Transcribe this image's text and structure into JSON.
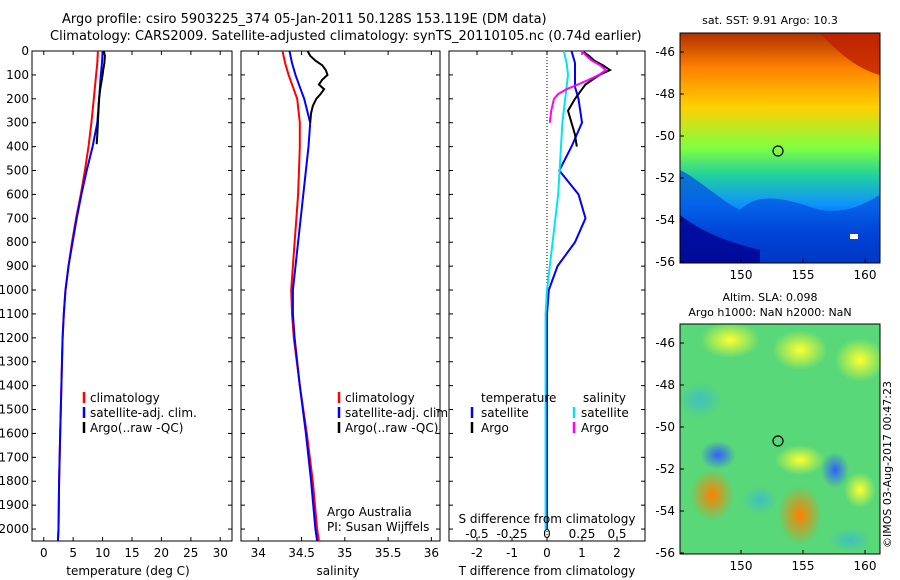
{
  "header": {
    "line1": "Argo profile: csiro 5903225_374 05-Jan-2011 50.128S 153.119E (DM data)",
    "line2": "Climatology: CARS2009. Satellite-adjusted climatology: synTS_20110105.nc (0.74d earlier)"
  },
  "colors": {
    "climatology": "#ff0000",
    "satellite": "#0000ff",
    "argo": "#000000",
    "sat_salinity": "#00e5ee",
    "argo_salinity": "#ff00ff"
  },
  "panels": {
    "temperature": {
      "xlabel": "temperature (deg C)",
      "xticks": [
        "0",
        "5",
        "10",
        "15",
        "20",
        "25",
        "30"
      ],
      "legend": [
        "climatology",
        "satellite-adj. clim.",
        "Argo(..raw -QC)"
      ]
    },
    "salinity": {
      "xlabel": "salinity",
      "xticks": [
        "34",
        "34.5",
        "35",
        "35.5",
        "36"
      ],
      "legend": [
        "climatology",
        "satellite-adj. clim.",
        "Argo(..raw -QC)"
      ],
      "credit1": "Argo Australia",
      "credit2": "PI: Susan Wijffels"
    },
    "difference": {
      "xlabel": "T difference from climatology",
      "s_axis_label": "S difference from climatology",
      "xticks": [
        "-2",
        "-1",
        "0",
        "1",
        "2"
      ],
      "s_ticks": [
        "-0.5",
        "-0.25",
        "0",
        "0.25",
        "0.5"
      ],
      "legend_temp_title": "temperature",
      "legend_sal_title": "salinity",
      "legend_temp": [
        "satellite",
        "Argo"
      ],
      "legend_sal": [
        "satellite",
        "Argo"
      ]
    },
    "sst_map": {
      "title": "sat. SST: 9.91 Argo: 10.3",
      "yticks": [
        "-46",
        "-48",
        "-50",
        "-52",
        "-54",
        "-56"
      ],
      "xticks": [
        "150",
        "155",
        "160"
      ]
    },
    "sla_map": {
      "title1": "Altim. SLA: 0.098",
      "title2": "Argo h1000: NaN h2000: NaN",
      "yticks": [
        "-46",
        "-48",
        "-50",
        "-52",
        "-54",
        "-56"
      ],
      "xticks": [
        "150",
        "155",
        "160"
      ]
    }
  },
  "yaxis_depth_ticks": [
    "0",
    "100",
    "200",
    "300",
    "400",
    "500",
    "600",
    "700",
    "800",
    "900",
    "1000",
    "1100",
    "1200",
    "1300",
    "1400",
    "1500",
    "1600",
    "1700",
    "1800",
    "1900",
    "2000"
  ],
  "watermark": "©IMOS 03-Aug-2017 00:47:23",
  "chart_data": [
    {
      "type": "line",
      "name": "temperature",
      "xlim": [
        -2,
        32
      ],
      "ylim": [
        2050,
        0
      ],
      "series": [
        {
          "name": "climatology",
          "depth": [
            0,
            50,
            100,
            200,
            300,
            400,
            500,
            600,
            700,
            800,
            900,
            1000,
            1100,
            1200,
            1400,
            1600,
            1800,
            2000,
            2050
          ],
          "values": [
            9.2,
            9.1,
            8.9,
            8.5,
            8.1,
            7.6,
            7.0,
            6.3,
            5.5,
            4.8,
            4.2,
            3.7,
            3.4,
            3.2,
            3.0,
            2.8,
            2.6,
            2.5,
            2.4
          ]
        },
        {
          "name": "satellite-adj. clim.",
          "depth": [
            0,
            50,
            100,
            200,
            300,
            400,
            500,
            600,
            700,
            800,
            900,
            1000,
            1100,
            1200,
            1400,
            1600,
            1800,
            2000,
            2050
          ],
          "values": [
            10.0,
            9.9,
            9.7,
            9.4,
            9.1,
            8.3,
            7.3,
            6.4,
            5.6,
            4.9,
            4.2,
            3.7,
            3.4,
            3.2,
            3.0,
            2.8,
            2.6,
            2.5,
            2.4
          ]
        },
        {
          "name": "Argo(..raw -QC)",
          "depth": [
            0,
            20,
            50,
            80,
            100,
            130,
            160,
            200,
            250,
            300,
            350,
            390
          ],
          "values": [
            10.2,
            10.4,
            10.3,
            10.1,
            10.0,
            9.8,
            9.6,
            9.4,
            9.3,
            9.2,
            9.1,
            9.0
          ]
        }
      ]
    },
    {
      "type": "line",
      "name": "salinity",
      "xlim": [
        33.8,
        36.1
      ],
      "ylim": [
        2050,
        0
      ],
      "series": [
        {
          "name": "climatology",
          "depth": [
            0,
            50,
            100,
            150,
            200,
            300,
            400,
            500,
            600,
            700,
            800,
            900,
            1000,
            1100,
            1200,
            1400,
            1600,
            1800,
            2000,
            2050
          ],
          "values": [
            34.28,
            34.31,
            34.35,
            34.4,
            34.45,
            34.48,
            34.48,
            34.47,
            34.46,
            34.44,
            34.42,
            34.4,
            34.38,
            34.39,
            34.41,
            34.48,
            34.56,
            34.63,
            34.68,
            34.7
          ]
        },
        {
          "name": "satellite-adj. clim.",
          "depth": [
            0,
            50,
            100,
            150,
            200,
            300,
            400,
            500,
            600,
            700,
            800,
            900,
            1000,
            1100,
            1200,
            1400,
            1600,
            1800,
            2000,
            2050
          ],
          "values": [
            34.36,
            34.39,
            34.43,
            34.48,
            34.53,
            34.6,
            34.58,
            34.55,
            34.52,
            34.49,
            34.46,
            34.43,
            34.4,
            34.4,
            34.42,
            34.48,
            34.55,
            34.61,
            34.66,
            34.68
          ]
        },
        {
          "name": "Argo(..raw -QC)",
          "depth": [
            0,
            20,
            40,
            60,
            80,
            100,
            120,
            140,
            160,
            180,
            200,
            230,
            260,
            300
          ],
          "values": [
            34.57,
            34.6,
            34.66,
            34.74,
            34.78,
            34.8,
            34.74,
            34.7,
            34.76,
            34.72,
            34.67,
            34.63,
            34.61,
            34.6
          ]
        }
      ]
    },
    {
      "type": "line",
      "name": "difference",
      "xlim": [
        -2.8,
        2.8
      ],
      "ylim": [
        2050,
        0
      ],
      "s_xlim": [
        -0.7,
        0.7
      ],
      "series": [
        {
          "name": "temperature satellite",
          "depth": [
            0,
            50,
            100,
            150,
            200,
            300,
            400,
            500,
            600,
            700,
            800,
            900,
            1000,
            1100,
            1200,
            1400,
            1600,
            1800,
            2000
          ],
          "values": [
            0.7,
            0.8,
            0.8,
            0.8,
            0.9,
            1.0,
            0.7,
            0.35,
            0.9,
            1.1,
            0.8,
            0.3,
            0.05,
            0.0,
            0.0,
            0.0,
            0.0,
            0.0,
            0.0
          ]
        },
        {
          "name": "temperature Argo",
          "depth": [
            0,
            20,
            40,
            60,
            80,
            100,
            120,
            140,
            160,
            180,
            200,
            250,
            300,
            350,
            400
          ],
          "values": [
            1.0,
            1.2,
            1.35,
            1.6,
            1.8,
            1.5,
            1.3,
            1.1,
            1.0,
            0.9,
            0.8,
            0.6,
            0.7,
            0.8,
            0.85
          ]
        },
        {
          "name": "salinity satellite",
          "depth": [
            0,
            50,
            100,
            200,
            300,
            400,
            500,
            600,
            700,
            800,
            900,
            1000,
            1100,
            1200,
            1400,
            1600,
            1800,
            2000
          ],
          "values": [
            0.12,
            0.14,
            0.15,
            0.13,
            0.11,
            0.1,
            0.09,
            0.08,
            0.06,
            0.04,
            0.02,
            0.0,
            -0.01,
            -0.01,
            -0.01,
            -0.01,
            -0.01,
            -0.01
          ]
        },
        {
          "name": "salinity Argo",
          "depth": [
            0,
            20,
            40,
            60,
            80,
            100,
            120,
            140,
            160,
            180,
            200,
            250,
            300
          ],
          "values": [
            0.25,
            0.28,
            0.32,
            0.38,
            0.42,
            0.37,
            0.3,
            0.22,
            0.14,
            0.08,
            0.05,
            0.03,
            0.02
          ]
        }
      ]
    }
  ]
}
